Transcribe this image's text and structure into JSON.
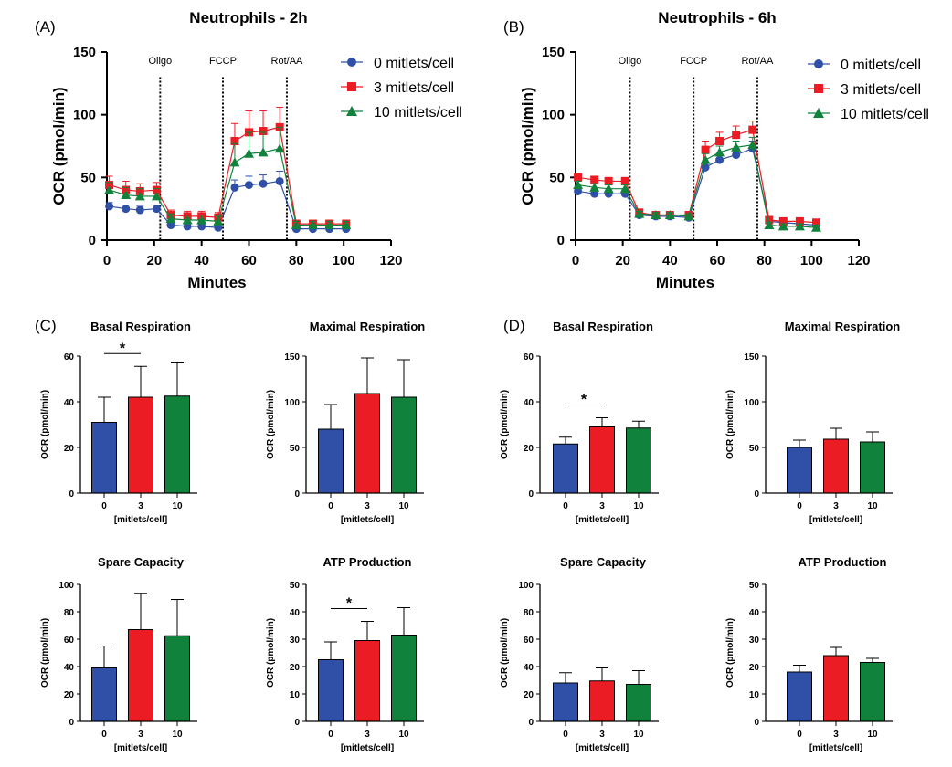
{
  "colors": {
    "0": "#3050a8",
    "3": "#ec1c24",
    "10": "#10823c"
  },
  "chart_data": {
    "line_charts": [
      {
        "panel": "(A)",
        "type": "line",
        "title": "Neutrophils - 2h",
        "xlabel": "Minutes",
        "ylabel": "OCR (pmol/min)",
        "xlim": [
          0,
          120
        ],
        "ylim": [
          0,
          150
        ],
        "xticks": [
          0,
          20,
          40,
          60,
          80,
          100,
          120
        ],
        "yticks": [
          0,
          50,
          100,
          150
        ],
        "injections": [
          {
            "label": "Oligo",
            "x": 22.5
          },
          {
            "label": "FCCP",
            "x": 49
          },
          {
            "label": "Rot/AA",
            "x": 76
          }
        ],
        "x": [
          1,
          8,
          14,
          21,
          27,
          34,
          40,
          47,
          54,
          60,
          66,
          73,
          80,
          87,
          94,
          101
        ],
        "legend_position": "top-right",
        "series": [
          {
            "name": "0 mitlets/cell",
            "key": "0",
            "marker": "circle",
            "values": [
              27,
              25,
              24,
              25,
              12,
              11,
              11,
              10,
              42,
              44,
              45,
              47,
              9,
              9,
              9,
              9
            ],
            "errors": [
              3,
              3,
              3,
              3,
              3,
              3,
              2,
              2,
              6,
              7,
              7,
              8,
              2,
              2,
              1,
              1
            ]
          },
          {
            "name": "3 mitlets/cell",
            "key": "3",
            "marker": "square",
            "values": [
              44,
              40,
              39,
              40,
              20,
              19,
              19,
              18,
              79,
              86,
              87,
              90,
              13,
              13,
              13,
              13
            ],
            "errors": [
              7,
              7,
              6,
              6,
              4,
              4,
              4,
              4,
              14,
              17,
              16,
              16,
              3,
              3,
              3,
              3
            ]
          },
          {
            "name": "10 mitlets/cell",
            "key": "10",
            "marker": "triangle",
            "values": [
              40,
              36,
              35,
              35,
              17,
              16,
              16,
              15,
              62,
              69,
              70,
              73,
              12,
              12,
              12,
              12
            ],
            "errors": [
              6,
              6,
              6,
              6,
              4,
              4,
              4,
              4,
              15,
              17,
              16,
              17,
              3,
              3,
              3,
              3
            ]
          }
        ]
      },
      {
        "panel": "(B)",
        "type": "line",
        "title": "Neutrophils - 6h",
        "xlabel": "Minutes",
        "ylabel": "OCR (pmol/min)",
        "xlim": [
          0,
          120
        ],
        "ylim": [
          0,
          150
        ],
        "xticks": [
          0,
          20,
          40,
          60,
          80,
          100,
          120
        ],
        "yticks": [
          0,
          50,
          100,
          150
        ],
        "injections": [
          {
            "label": "Oligo",
            "x": 23
          },
          {
            "label": "FCCP",
            "x": 50
          },
          {
            "label": "Rot/AA",
            "x": 77
          }
        ],
        "x": [
          1,
          8,
          14,
          21,
          27,
          34,
          40,
          48,
          55,
          61,
          68,
          75,
          82,
          88,
          95,
          102
        ],
        "legend_position": "top-right",
        "series": [
          {
            "name": "0 mitlets/cell",
            "key": "0",
            "marker": "circle",
            "values": [
              39,
              37,
              37,
              37,
              20,
              19,
              19,
              18,
              58,
              64,
              68,
              73,
              15,
              14,
              13,
              12
            ],
            "errors": [
              3,
              3,
              3,
              3,
              2,
              2,
              2,
              2,
              4,
              5,
              5,
              6,
              2,
              2,
              2,
              2
            ]
          },
          {
            "name": "3 mitlets/cell",
            "key": "3",
            "marker": "square",
            "values": [
              50,
              48,
              47,
              47,
              22,
              20,
              20,
              20,
              72,
              79,
              84,
              88,
              16,
              15,
              15,
              14
            ],
            "errors": [
              3,
              3,
              3,
              3,
              2,
              2,
              2,
              2,
              7,
              7,
              7,
              7,
              2,
              2,
              2,
              2
            ]
          },
          {
            "name": "10 mitlets/cell",
            "key": "10",
            "marker": "triangle",
            "values": [
              44,
              42,
              41,
              41,
              21,
              20,
              20,
              19,
              64,
              70,
              74,
              76,
              12,
              11,
              11,
              10
            ],
            "errors": [
              3,
              3,
              3,
              3,
              2,
              2,
              2,
              2,
              5,
              5,
              5,
              6,
              2,
              2,
              2,
              2
            ]
          }
        ]
      }
    ],
    "bar_charts": [
      {
        "panel": "(C)",
        "type": "bar",
        "title": "Basal Respiration",
        "ylim": [
          0,
          60
        ],
        "yticks": [
          0,
          20,
          40,
          60
        ],
        "ylabel": "OCR (pmol/min)",
        "xlabel": "[mitlets/cell]",
        "categories": [
          "0",
          "3",
          "10"
        ],
        "values": [
          31,
          42,
          42.5
        ],
        "errors": [
          11,
          13.5,
          14.5
        ],
        "significance": [
          {
            "from": 0,
            "to": 1,
            "label": "*"
          }
        ]
      },
      {
        "panel": "",
        "type": "bar",
        "title": "Maximal Respiration",
        "ylim": [
          0,
          150
        ],
        "yticks": [
          0,
          50,
          100,
          150
        ],
        "ylabel": "OCR (pmol/min)",
        "xlabel": "[mitlets/cell]",
        "categories": [
          "0",
          "3",
          "10"
        ],
        "values": [
          70,
          109,
          105
        ],
        "errors": [
          27,
          39,
          41
        ],
        "significance": []
      },
      {
        "panel": "(D)",
        "type": "bar",
        "title": "Basal Respiration",
        "ylim": [
          0,
          60
        ],
        "yticks": [
          0,
          20,
          40,
          60
        ],
        "ylabel": "OCR (pmol/min)",
        "xlabel": "[mitlets/cell]",
        "categories": [
          "0",
          "3",
          "10"
        ],
        "values": [
          21.5,
          29,
          28.5
        ],
        "errors": [
          3,
          4,
          3
        ],
        "significance": [
          {
            "from": 0,
            "to": 1,
            "label": "*"
          }
        ]
      },
      {
        "panel": "",
        "type": "bar",
        "title": "Maximal Respiration",
        "ylim": [
          0,
          150
        ],
        "yticks": [
          0,
          50,
          100,
          150
        ],
        "ylabel": "OCR (pmol/min)",
        "xlabel": "[mitlets/cell]",
        "categories": [
          "0",
          "3",
          "10"
        ],
        "values": [
          50,
          59,
          56
        ],
        "errors": [
          8,
          12,
          11
        ],
        "significance": []
      },
      {
        "panel": "",
        "type": "bar",
        "title": "Spare Capacity",
        "ylim": [
          0,
          100
        ],
        "yticks": [
          0,
          20,
          40,
          60,
          80,
          100
        ],
        "ylabel": "OCR (pmol/min)",
        "xlabel": "[mitlets/cell]",
        "categories": [
          "0",
          "3",
          "10"
        ],
        "values": [
          39,
          67,
          62.5
        ],
        "errors": [
          16,
          26.5,
          26.5
        ],
        "significance": []
      },
      {
        "panel": "",
        "type": "bar",
        "title": "ATP Production",
        "ylim": [
          0,
          50
        ],
        "yticks": [
          0,
          10,
          20,
          30,
          40,
          50
        ],
        "ylabel": "OCR (pmol/min)",
        "xlabel": "[mitlets/cell]",
        "categories": [
          "0",
          "3",
          "10"
        ],
        "values": [
          22.5,
          29.5,
          31.5
        ],
        "errors": [
          6.5,
          7,
          10
        ],
        "significance": [
          {
            "from": 0,
            "to": 1,
            "label": "*"
          }
        ]
      },
      {
        "panel": "",
        "type": "bar",
        "title": "Spare Capacity",
        "ylim": [
          0,
          100
        ],
        "yticks": [
          0,
          20,
          40,
          60,
          80,
          100
        ],
        "ylabel": "OCR (pmol/min)",
        "xlabel": "[mitlets/cell]",
        "categories": [
          "0",
          "3",
          "10"
        ],
        "values": [
          28,
          29.5,
          27
        ],
        "errors": [
          7.5,
          9.5,
          10
        ],
        "significance": []
      },
      {
        "panel": "",
        "type": "bar",
        "title": "ATP Production",
        "ylim": [
          0,
          50
        ],
        "yticks": [
          0,
          10,
          20,
          30,
          40,
          50
        ],
        "ylabel": "OCR (pmol/min)",
        "xlabel": "[mitlets/cell]",
        "categories": [
          "0",
          "3",
          "10"
        ],
        "values": [
          18,
          24,
          21.5
        ],
        "errors": [
          2.5,
          3,
          1.5
        ],
        "significance": []
      }
    ]
  }
}
